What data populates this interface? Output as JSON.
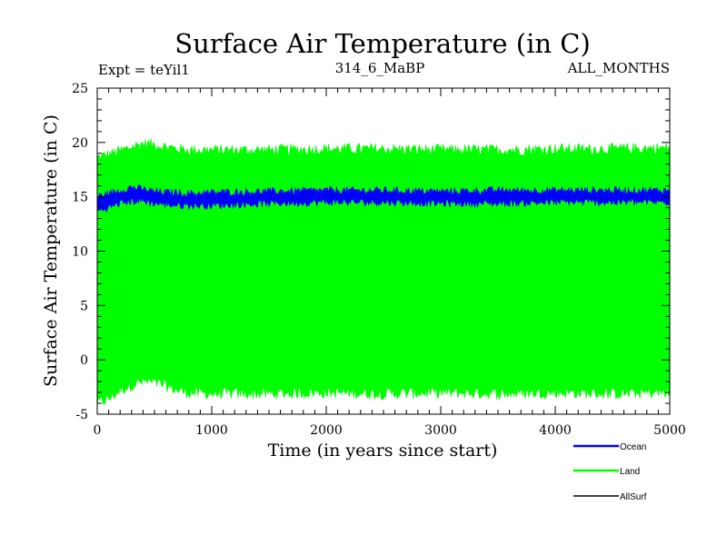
{
  "chart_data": {
    "type": "line",
    "title": "Surface Air Temperature (in C)",
    "subtitle_left": "Expt = teYil1",
    "subtitle_center": "314_6_MaBP",
    "subtitle_right": "ALL_MONTHS",
    "xlabel": "Time (in years since start)",
    "ylabel": "Surface Air Temperature (in C)",
    "xlim": [
      0,
      5000
    ],
    "ylim": [
      -5,
      25
    ],
    "x_ticks": [
      0,
      1000,
      2000,
      3000,
      4000,
      5000
    ],
    "y_ticks": [
      -5,
      0,
      5,
      10,
      15,
      20,
      25
    ],
    "x_tick_labels": [
      "0",
      "1000",
      "2000",
      "3000",
      "4000",
      "5000"
    ],
    "y_tick_labels": [
      "-5",
      "0",
      "5",
      "10",
      "15",
      "20",
      "25"
    ],
    "grid": false,
    "legend_position": "bottom-right",
    "series": [
      {
        "name": "Land",
        "color": "#00ff00",
        "style": "band",
        "x": [
          0,
          100,
          200,
          300,
          400,
          500,
          600,
          700,
          800,
          1000,
          1500,
          2000,
          2500,
          3000,
          3500,
          4000,
          4500,
          5000
        ],
        "upper": [
          18.6,
          18.9,
          19.2,
          19.6,
          19.9,
          19.8,
          19.6,
          19.4,
          19.3,
          19.3,
          19.3,
          19.4,
          19.4,
          19.3,
          19.3,
          19.4,
          19.4,
          19.5
        ],
        "lower": [
          -4.0,
          -3.6,
          -2.8,
          -2.3,
          -2.0,
          -2.1,
          -2.4,
          -2.8,
          -3.0,
          -3.1,
          -3.1,
          -3.0,
          -3.1,
          -3.0,
          -3.1,
          -3.0,
          -3.1,
          -3.0
        ]
      },
      {
        "name": "Ocean",
        "color": "#0000ff",
        "style": "band",
        "x": [
          0,
          100,
          200,
          300,
          400,
          500,
          600,
          700,
          800,
          1000,
          1500,
          2000,
          2500,
          3000,
          3500,
          4000,
          4500,
          5000
        ],
        "upper": [
          15.0,
          15.3,
          15.6,
          15.9,
          15.7,
          15.5,
          15.4,
          15.4,
          15.3,
          15.4,
          15.5,
          15.6,
          15.6,
          15.5,
          15.6,
          15.6,
          15.6,
          15.6
        ],
        "lower": [
          13.7,
          14.0,
          14.4,
          14.6,
          14.6,
          14.4,
          14.3,
          14.2,
          14.2,
          14.2,
          14.4,
          14.5,
          14.5,
          14.4,
          14.4,
          14.5,
          14.5,
          14.5
        ]
      },
      {
        "name": "AllSurf",
        "color": "#000000",
        "style": "line",
        "x": [],
        "values": []
      }
    ],
    "legend": [
      {
        "label": "Ocean",
        "color": "#0000ff"
      },
      {
        "label": "Land",
        "color": "#00ff00"
      },
      {
        "label": "AllSurf",
        "color": "#000000"
      }
    ]
  }
}
